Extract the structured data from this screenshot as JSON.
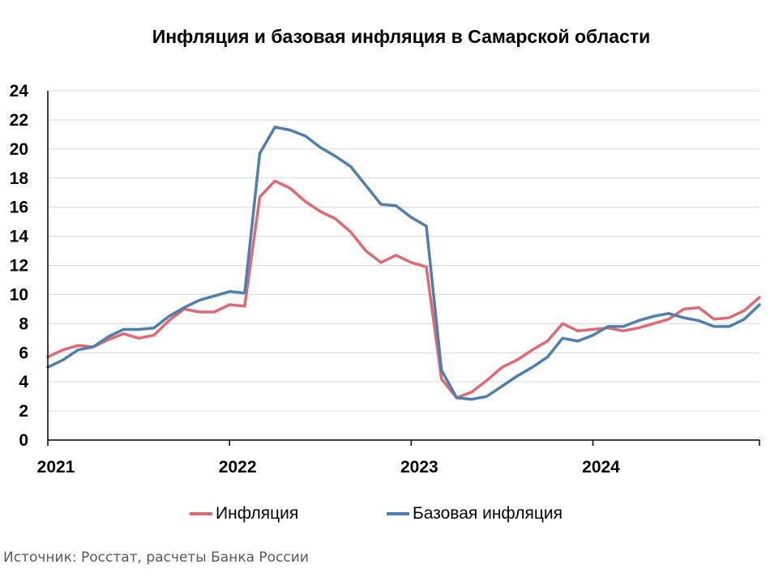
{
  "chart_data": {
    "type": "line",
    "title": "Инфляция и базовая инфляция в Самарской области",
    "xlabel": "",
    "ylabel": "",
    "ylim": [
      0,
      24
    ],
    "yticks": [
      0,
      2,
      4,
      6,
      8,
      10,
      12,
      14,
      16,
      18,
      20,
      22,
      24
    ],
    "x_tick_labels": [
      "2021",
      "2022",
      "2023",
      "2024"
    ],
    "x": [
      "2021-01",
      "2021-02",
      "2021-03",
      "2021-04",
      "2021-05",
      "2021-06",
      "2021-07",
      "2021-08",
      "2021-09",
      "2021-10",
      "2021-11",
      "2021-12",
      "2022-01",
      "2022-02",
      "2022-03",
      "2022-04",
      "2022-05",
      "2022-06",
      "2022-07",
      "2022-08",
      "2022-09",
      "2022-10",
      "2022-11",
      "2022-12",
      "2023-01",
      "2023-02",
      "2023-03",
      "2023-04",
      "2023-05",
      "2023-06",
      "2023-07",
      "2023-08",
      "2023-09",
      "2023-10",
      "2023-11",
      "2023-12",
      "2024-01",
      "2024-02",
      "2024-03",
      "2024-04",
      "2024-05",
      "2024-06",
      "2024-07",
      "2024-08",
      "2024-09",
      "2024-10",
      "2024-11",
      "2024-12"
    ],
    "series": [
      {
        "name": "Инфляция",
        "color": "#e06a72",
        "values": [
          5.7,
          6.2,
          6.5,
          6.4,
          6.9,
          7.3,
          7.0,
          7.2,
          8.2,
          9.0,
          8.8,
          8.8,
          9.3,
          9.2,
          16.7,
          17.8,
          17.3,
          16.4,
          15.7,
          15.2,
          14.3,
          13.0,
          12.2,
          12.7,
          12.2,
          11.9,
          4.2,
          2.9,
          3.3,
          4.1,
          5.0,
          5.5,
          6.2,
          6.8,
          8.0,
          7.5,
          7.6,
          7.7,
          7.5,
          7.7,
          8.0,
          8.3,
          9.0,
          9.1,
          8.3,
          8.4,
          8.9,
          9.8
        ]
      },
      {
        "name": "Базовая инфляция",
        "color": "#4f7eb0",
        "values": [
          5.0,
          5.5,
          6.2,
          6.4,
          7.1,
          7.6,
          7.6,
          7.7,
          8.5,
          9.1,
          9.6,
          9.9,
          10.2,
          10.1,
          19.7,
          21.5,
          21.3,
          20.9,
          20.1,
          19.5,
          18.8,
          17.5,
          16.2,
          16.1,
          15.3,
          14.7,
          4.8,
          2.9,
          2.8,
          3.0,
          3.7,
          4.4,
          5.0,
          5.7,
          7.0,
          6.8,
          7.2,
          7.8,
          7.8,
          8.2,
          8.5,
          8.7,
          8.4,
          8.2,
          7.8,
          7.8,
          8.3,
          9.3
        ]
      }
    ],
    "grid": true,
    "legend_position": "bottom"
  },
  "source_text": "Источник: Росстат, расчеты Банка России"
}
